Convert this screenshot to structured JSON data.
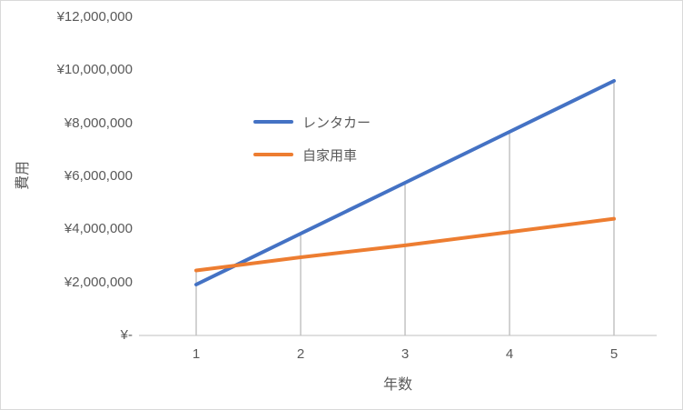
{
  "chart_data": {
    "type": "line",
    "title": "",
    "xlabel": "年数",
    "ylabel": "費用",
    "x": [
      1,
      2,
      3,
      4,
      5
    ],
    "series": [
      {
        "name": "レンタカー",
        "color": "#4472C4",
        "values": [
          1920000,
          3840000,
          5760000,
          7680000,
          9600000
        ]
      },
      {
        "name": "自家用車",
        "color": "#ED7D31",
        "values": [
          2450000,
          2950000,
          3400000,
          3900000,
          4400000
        ]
      }
    ],
    "ylim": [
      0,
      12000000
    ],
    "y_tick_interval": 2000000,
    "y_tick_labels": [
      "¥-",
      "¥2,000,000",
      "¥4,000,000",
      "¥6,000,000",
      "¥8,000,000",
      "¥10,000,000",
      "¥12,000,000"
    ],
    "x_tick_labels": [
      "1",
      "2",
      "3",
      "4",
      "5"
    ],
    "grid": false,
    "drop_lines": true,
    "legend_position": "inside-upper-middle"
  },
  "colors": {
    "axis_text": "#595959",
    "axis_line": "#bfbfbf",
    "drop_line": "#a6a6a6",
    "border": "#d9d9d9",
    "background": "#ffffff"
  }
}
